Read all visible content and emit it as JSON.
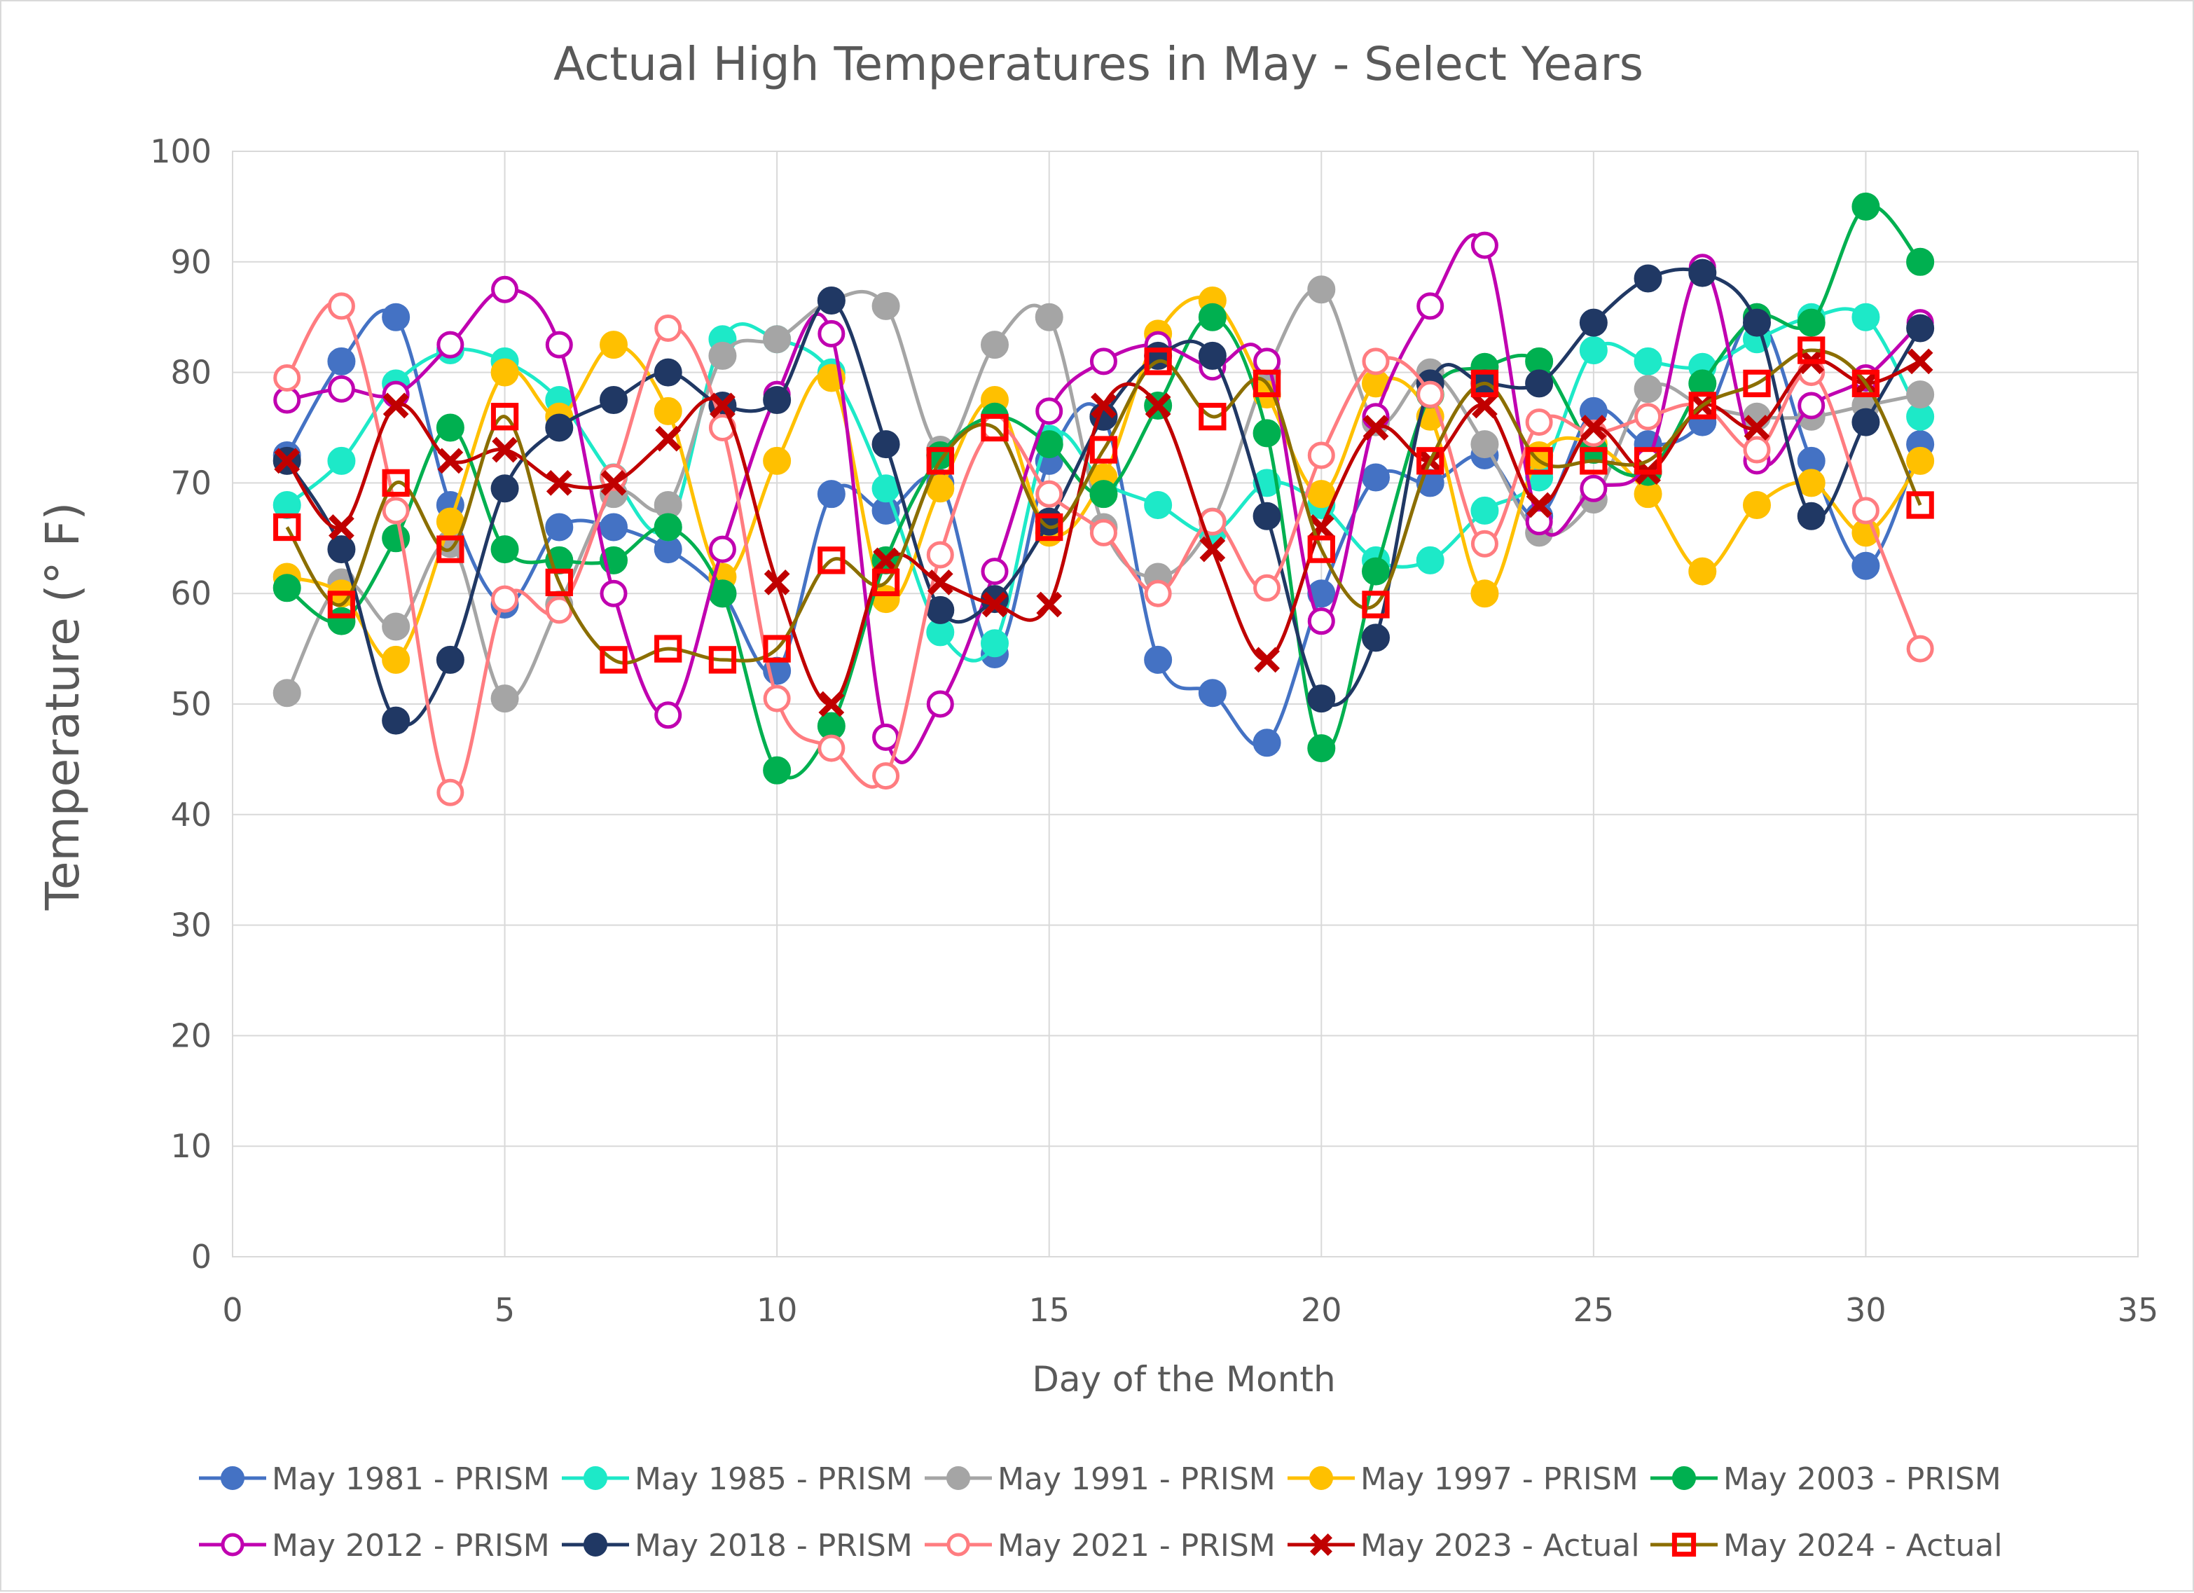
{
  "chart_data": {
    "type": "line",
    "title": "Actual High Temperatures in May - Select Years",
    "xlabel": "Day of the Month",
    "ylabel": "Temperature (° F)",
    "xlim": [
      0,
      35
    ],
    "ylim": [
      0,
      100
    ],
    "xticks": [
      0,
      5,
      10,
      15,
      20,
      25,
      30,
      35
    ],
    "yticks": [
      0,
      10,
      20,
      30,
      40,
      50,
      60,
      70,
      80,
      90,
      100
    ],
    "grid": true,
    "smooth": true,
    "legend_position": "bottom",
    "x": [
      1,
      2,
      3,
      4,
      5,
      6,
      7,
      8,
      9,
      10,
      11,
      12,
      13,
      14,
      15,
      16,
      17,
      18,
      19,
      20,
      21,
      22,
      23,
      24,
      25,
      26,
      27,
      28,
      29,
      30,
      31
    ],
    "series": [
      {
        "name": "May 1981 - PRISM",
        "color": "#4472c4",
        "marker": "filled-circle",
        "values": [
          72.5,
          81,
          85,
          68,
          59,
          66,
          66,
          64,
          60,
          53,
          69,
          67.5,
          70,
          54.5,
          72,
          76,
          54,
          51,
          46.5,
          60,
          70.5,
          70,
          72.5,
          67,
          76.5,
          73.5,
          75.5,
          85,
          72,
          62.5,
          73.5
        ]
      },
      {
        "name": "May 1985 - PRISM",
        "color": "#1de9c8",
        "marker": "filled-circle",
        "values": [
          68,
          72,
          79,
          82,
          81,
          77.5,
          70.5,
          66,
          83,
          83,
          80,
          69.5,
          56.5,
          55.5,
          74,
          70,
          68,
          65.5,
          70,
          68,
          63,
          63,
          67.5,
          70.5,
          82,
          81,
          80.5,
          83,
          85,
          85,
          76
        ]
      },
      {
        "name": "May 1991 - PRISM",
        "color": "#a5a5a5",
        "marker": "filled-circle",
        "values": [
          51,
          61,
          57,
          64.5,
          50.5,
          59,
          69,
          68,
          81.5,
          83,
          86.5,
          86,
          73,
          82.5,
          85,
          66,
          61.5,
          66.5,
          80,
          87.5,
          75.5,
          80,
          73.5,
          65.5,
          68.5,
          78.5,
          77,
          76,
          76,
          77,
          78
        ]
      },
      {
        "name": "May 1997 - PRISM",
        "color": "#ffc000",
        "marker": "filled-circle",
        "values": [
          61.5,
          60,
          54,
          66.5,
          80,
          76,
          82.5,
          76.5,
          61.5,
          72,
          79.5,
          59.5,
          69.5,
          77.5,
          65.5,
          70.5,
          83.5,
          86.5,
          78,
          69,
          79,
          76,
          60,
          72.5,
          73.5,
          69,
          62,
          68,
          70,
          65.5,
          72
        ]
      },
      {
        "name": "May 2003 - PRISM",
        "color": "#00b050",
        "marker": "filled-circle",
        "values": [
          60.5,
          57.5,
          65,
          75,
          64,
          63,
          63,
          66,
          60,
          44,
          48,
          63,
          72.5,
          76,
          73.5,
          69,
          77,
          85,
          74.5,
          46,
          62,
          78,
          80.5,
          81,
          73,
          71,
          79,
          85,
          84.5,
          95,
          90
        ]
      },
      {
        "name": "May 2012 - PRISM",
        "color": "#c000b0",
        "marker": "open-circle",
        "values": [
          77.5,
          78.5,
          78,
          82.5,
          87.5,
          82.5,
          60,
          49,
          64,
          78,
          83.5,
          47,
          50,
          62,
          76.5,
          81,
          82.5,
          80.5,
          81,
          57.5,
          76,
          86,
          91.5,
          66.5,
          69.5,
          72,
          89.5,
          72,
          77,
          79.5,
          84.5
        ]
      },
      {
        "name": "May 2018 - PRISM",
        "color": "#203864",
        "marker": "filled-circle",
        "values": [
          72,
          64,
          48.5,
          54,
          69.5,
          75,
          77.5,
          80,
          77,
          77.5,
          86.5,
          73.5,
          58.5,
          59.5,
          66.5,
          76,
          81.5,
          81.5,
          67,
          50.5,
          56,
          79,
          79,
          79,
          84.5,
          88.5,
          89,
          84.5,
          67,
          75.5,
          84
        ]
      },
      {
        "name": "May 2021 - PRISM",
        "color": "#ff7c80",
        "marker": "open-circle",
        "values": [
          79.5,
          86,
          67.5,
          42,
          59.5,
          58.5,
          70.5,
          84,
          75,
          50.5,
          46,
          43.5,
          63.5,
          75,
          69,
          65.5,
          60,
          66.5,
          60.5,
          72.5,
          81,
          78,
          64.5,
          75.5,
          74.5,
          76,
          77,
          73,
          80,
          67.5,
          55
        ]
      },
      {
        "name": "May 2023 - Actual",
        "color": "#c00000",
        "marker": "x",
        "values": [
          72,
          66,
          77,
          72,
          73,
          70,
          70,
          74,
          77,
          61,
          50,
          63,
          61,
          59,
          59,
          77,
          77,
          64,
          54,
          66,
          75,
          72,
          77,
          68,
          75,
          71,
          77,
          75,
          81,
          79,
          81
        ]
      },
      {
        "name": "May 2024 - Actual",
        "color": "#8b6e00",
        "marker": "open-square",
        "marker_color": "#ff0000",
        "values": [
          66,
          59,
          70,
          64,
          76,
          61,
          54,
          55,
          54,
          55,
          63,
          61,
          72,
          75,
          66,
          73,
          81,
          76,
          79,
          64,
          59,
          72,
          79,
          72,
          72,
          72,
          77,
          79,
          82,
          79,
          68
        ]
      }
    ]
  }
}
